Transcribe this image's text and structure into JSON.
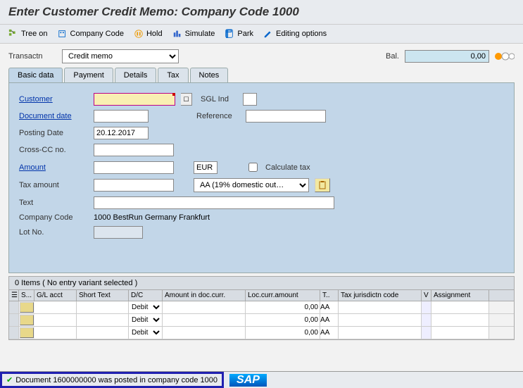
{
  "title": "Enter Customer Credit Memo: Company Code 1000",
  "toolbar": {
    "tree_on": "Tree on",
    "company_code": "Company Code",
    "hold": "Hold",
    "simulate": "Simulate",
    "park": "Park",
    "editing_options": "Editing options"
  },
  "transactn": {
    "label": "Transactn",
    "value": "Credit memo"
  },
  "balance": {
    "label": "Bal.",
    "value": "0,00"
  },
  "tabs": [
    "Basic data",
    "Payment",
    "Details",
    "Tax",
    "Notes"
  ],
  "basic_data": {
    "customer": {
      "label": "Customer",
      "value": ""
    },
    "sgl_ind": {
      "label": "SGL Ind",
      "value": ""
    },
    "doc_date": {
      "label": "Document date",
      "value": ""
    },
    "reference": {
      "label": "Reference",
      "value": ""
    },
    "posting_date": {
      "label": "Posting Date",
      "value": "20.12.2017"
    },
    "cross_cc": {
      "label": "Cross-CC no.",
      "value": ""
    },
    "amount": {
      "label": "Amount",
      "value": "",
      "currency": "EUR"
    },
    "calc_tax": {
      "label": "Calculate tax",
      "checked": false
    },
    "tax_amount": {
      "label": "Tax amount",
      "value": "",
      "tax_code": "AA (19% domestic out…"
    },
    "text": {
      "label": "Text",
      "value": ""
    },
    "company_code": {
      "label": "Company Code",
      "value": "1000 BestRun Germany Frankfurt"
    },
    "lot_no": {
      "label": "Lot No.",
      "value": ""
    }
  },
  "items_header": "0 Items ( No entry variant selected )",
  "grid": {
    "columns": [
      "",
      "S...",
      "G/L acct",
      "Short Text",
      "D/C",
      "Amount in doc.curr.",
      "Loc.curr.amount",
      "T..",
      "Tax jurisdictn code",
      "V",
      "Assignment"
    ],
    "widths": [
      14,
      22,
      60,
      74,
      48,
      118,
      106,
      26,
      118,
      14,
      82
    ],
    "rows": [
      {
        "dc": "Debit",
        "loc_amt": "0,00",
        "tax": "AA"
      },
      {
        "dc": "Debit",
        "loc_amt": "0,00",
        "tax": "AA"
      },
      {
        "dc": "Debit",
        "loc_amt": "0,00",
        "tax": "AA"
      }
    ]
  },
  "status": "Document 1600000000 was posted in company code 1000",
  "colors": {
    "panel_bg": "#c2d6e8",
    "required_bg": "#f9efb2",
    "toolbar_bg": "#e8ebef",
    "status_border": "#2020b0"
  }
}
